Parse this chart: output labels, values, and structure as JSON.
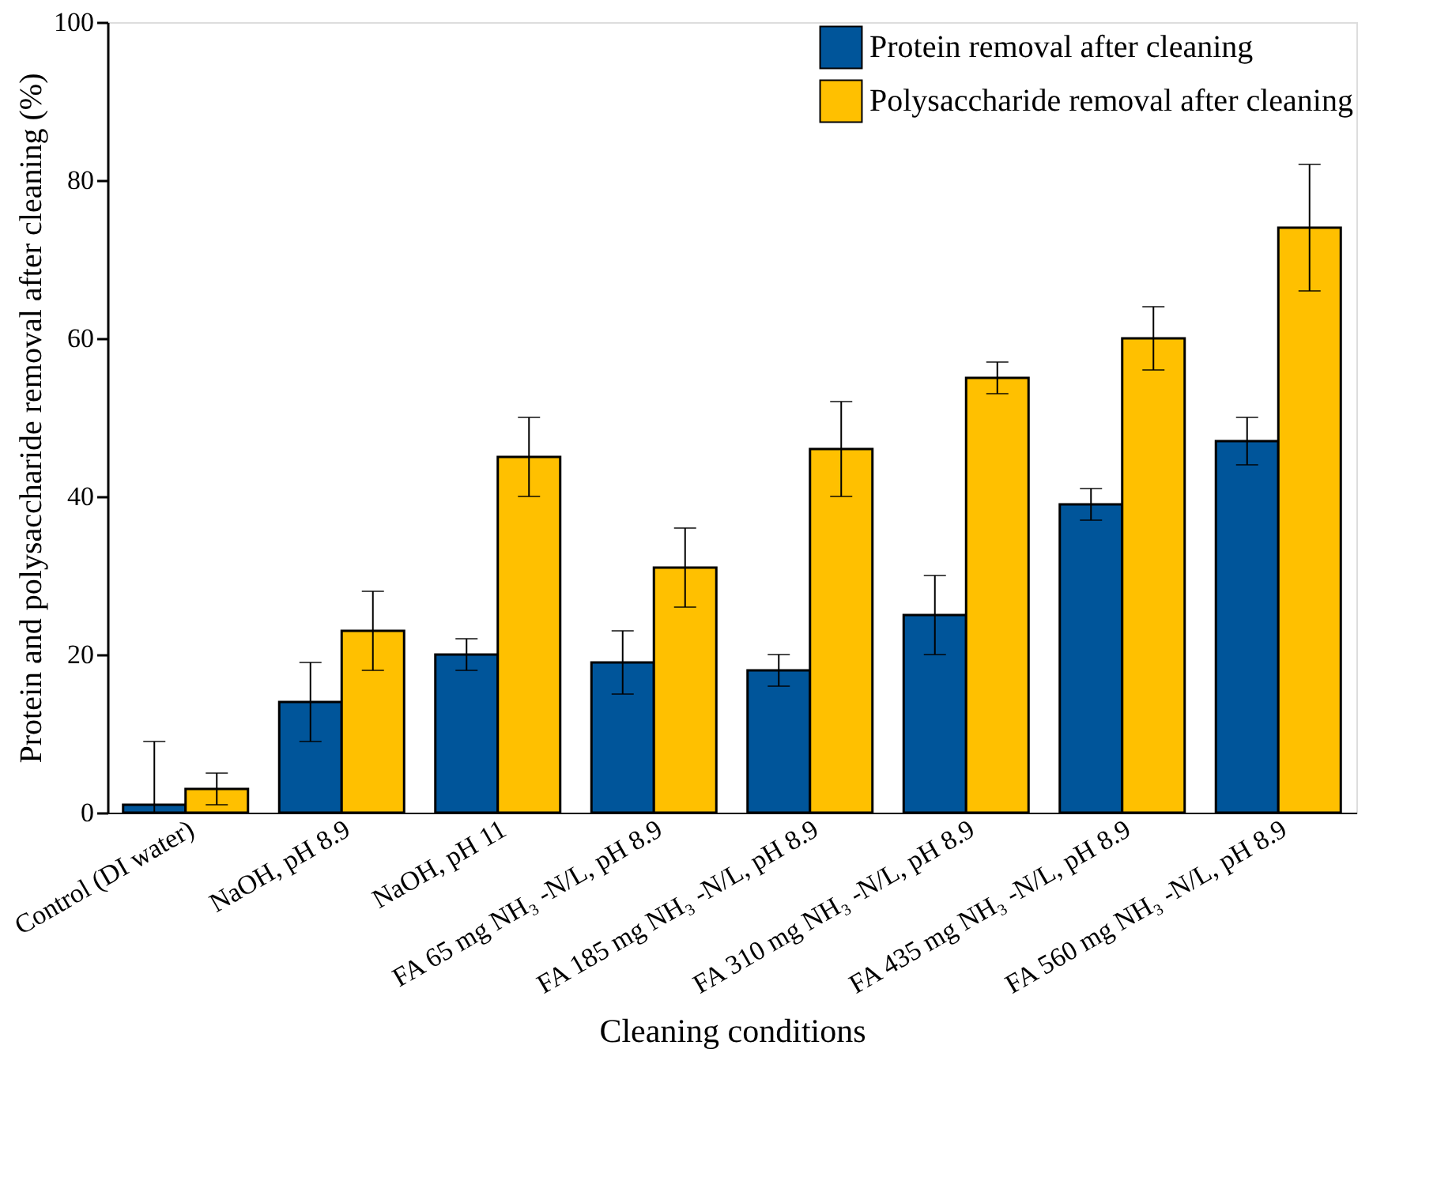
{
  "chart_data": {
    "type": "bar",
    "xlabel": "Cleaning conditions",
    "ylabel": "Protein and polysaccharide removal after cleaning (%)",
    "categories": [
      "Control (DI water)",
      "NaOH, pH 8.9",
      "NaOH, pH 11",
      "FA 65 mg NH₃ -N/L, pH 8.9",
      "FA 185 mg NH₃ -N/L, pH 8.9",
      "FA 310 mg NH₃ -N/L, pH 8.9",
      "FA 435 mg NH₃ -N/L, pH 8.9",
      "FA 560 mg NH₃ -N/L, pH 8.9"
    ],
    "series": [
      {
        "name": "Protein removal after cleaning",
        "color": "#00559a",
        "values": [
          1,
          14,
          20,
          19,
          18,
          25,
          39,
          47
        ],
        "errors": [
          [
            0,
            9
          ],
          5,
          2,
          4,
          2,
          5,
          2,
          3
        ]
      },
      {
        "name": "Polysaccharide removal after cleaning",
        "color": "#ffc000",
        "values": [
          3,
          23,
          45,
          31,
          46,
          55,
          60,
          74
        ],
        "errors": [
          2,
          5,
          5,
          5,
          6,
          2,
          4,
          8
        ]
      }
    ],
    "ylim": [
      0,
      100
    ],
    "yticks": [
      0,
      20,
      40,
      60,
      80,
      100
    ],
    "grid": false,
    "legend": "top right"
  }
}
